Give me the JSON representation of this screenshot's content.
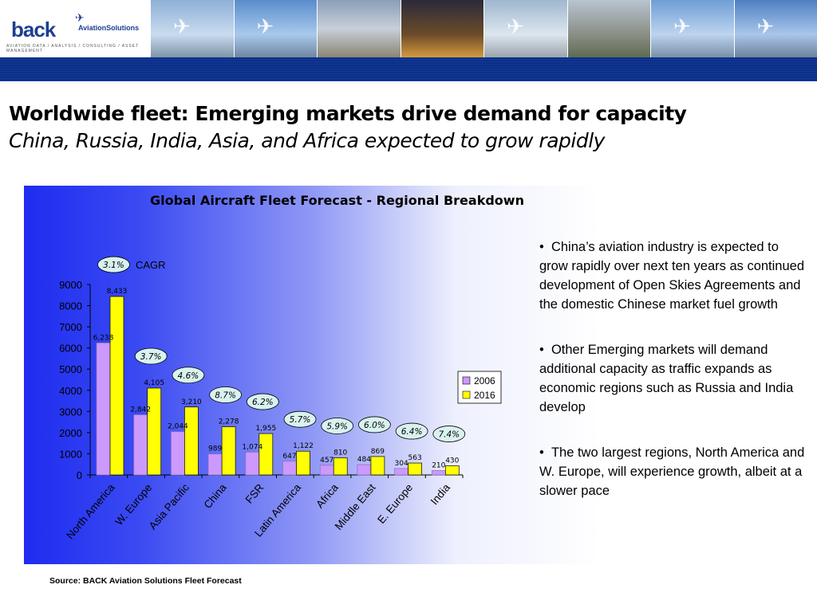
{
  "logo": {
    "brand": "back",
    "sub": "AviationSolutions",
    "tagline": "AVIATION DATA / ANALYSIS / CONSULTING / ASSET MANAGEMENT",
    "icon": "plane-icon"
  },
  "header_photos": [
    "aircraft-photo",
    "aircraft-photo",
    "aircraft-photo",
    "airport-photo",
    "airport-photo",
    "aircraft-photo",
    "cargo-photo",
    "aircraft-photo",
    "aircraft-photo"
  ],
  "slide": {
    "title": "Worldwide fleet:  Emerging markets drive demand for capacity",
    "subtitle": "China, Russia, India, Asia, and Africa expected to grow rapidly"
  },
  "bullets": [
    "China’s aviation industry is expected to grow rapidly over next ten years as continued development of Open Skies Agreements and the domestic Chinese market fuel growth",
    "Other Emerging markets will demand additional capacity as traffic expands as economic regions such as Russia and India develop",
    "The two largest regions, North America and W. Europe, will experience growth, albeit at a slower pace"
  ],
  "source": "Source: BACK Aviation Solutions Fleet Forecast",
  "colors": {
    "bar_2006": "#cc99ff",
    "bar_2016": "#ffff00",
    "header_blue": "#0c2f86",
    "cagr_bubble": "#d9f2f0"
  },
  "chart_data": {
    "type": "bar",
    "title": "Global Aircraft Fleet Forecast - Regional Breakdown",
    "categories": [
      "North America",
      "W. Europe",
      "Asia Pacific",
      "China",
      "FSR",
      "Latin America",
      "Africa",
      "Middle East",
      "E. Europe",
      "India"
    ],
    "series": [
      {
        "name": "2006",
        "values": [
          6238,
          2842,
          2044,
          989,
          1074,
          647,
          457,
          484,
          304,
          210
        ],
        "labels": [
          "6,238",
          "2,842",
          "2,044",
          "989",
          "1,074",
          "647",
          "457",
          "484",
          "304",
          "210"
        ]
      },
      {
        "name": "2016",
        "values": [
          8433,
          4105,
          3210,
          2278,
          1955,
          1122,
          810,
          869,
          563,
          430
        ],
        "labels": [
          "8,433",
          "4,105",
          "3,210",
          "2,278",
          "1,955",
          "1,122",
          "810",
          "869",
          "563",
          "430"
        ]
      }
    ],
    "cagr": [
      "3.1%",
      "3.7%",
      "4.6%",
      "8.7%",
      "6.2%",
      "5.7%",
      "5.9%",
      "6.0%",
      "6.4%",
      "7.4%"
    ],
    "cagr_label": "CAGR",
    "yticks": [
      "0",
      "1000",
      "2000",
      "3000",
      "4000",
      "5000",
      "6000",
      "7000",
      "8000",
      "9000"
    ],
    "ylim": [
      0,
      9000
    ],
    "legend_position": "right",
    "grid": false
  }
}
